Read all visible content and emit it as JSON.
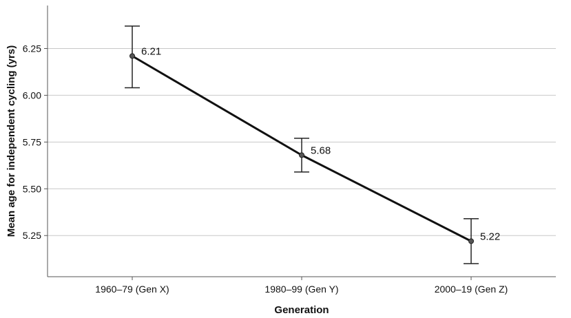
{
  "chart_data": {
    "type": "line",
    "xlabel": "Generation",
    "ylabel": "Mean age for independent cycling (yrs)",
    "categories": [
      "1960–79 (Gen X)",
      "1980–99 (Gen Y)",
      "2000–19 (Gen Z)"
    ],
    "series": [
      {
        "values": [
          6.21,
          5.68,
          5.22
        ],
        "error_upper": [
          6.37,
          5.77,
          5.34
        ],
        "error_lower": [
          6.04,
          5.59,
          5.1
        ],
        "data_labels": [
          "6.21",
          "5.68",
          "5.22"
        ]
      }
    ],
    "ylim": [
      5.03,
      6.48
    ],
    "yticks": [
      5.25,
      5.5,
      5.75,
      6.0,
      6.25
    ],
    "ytick_labels": [
      "5.25",
      "5.50",
      "5.75",
      "6.00",
      "6.25"
    ],
    "grid": true,
    "legend": "none",
    "colors": {
      "line": "#111111",
      "grid": "#c8c8c8",
      "axis": "#555555",
      "marker": "#555555"
    }
  }
}
